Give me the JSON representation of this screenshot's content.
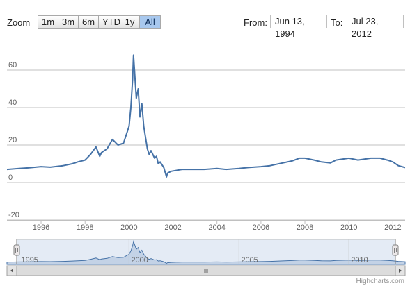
{
  "toolbar": {
    "zoom_label": "Zoom",
    "buttons": [
      "1m",
      "3m",
      "6m",
      "YTD",
      "1y",
      "All"
    ],
    "active": "All",
    "from_label": "From:",
    "from_value": "Jun 13, 1994",
    "to_label": "To:",
    "to_value": "Jul 23, 2012"
  },
  "credits": "Highcharts.com",
  "colors": {
    "series": "#4572a7",
    "navigator_fill": "#c3d2e6",
    "navigator_mask": "#e4ebf5",
    "grid": "#c0c0c0",
    "active_button": "#a8c8ee"
  },
  "chart_data": {
    "type": "line",
    "ylim": [
      -20,
      70
    ],
    "yticks": [
      -20,
      0,
      20,
      40,
      60
    ],
    "xticks": [
      1996,
      1998,
      2000,
      2002,
      2004,
      2006,
      2008,
      2010,
      2012
    ],
    "navigator_ticks": [
      1995,
      2000,
      2005,
      2010
    ],
    "xlim": [
      "1994-06-13",
      "2012-07-23"
    ],
    "grid": true,
    "legend": "none",
    "series": [
      {
        "x": [
          "1994-06-13",
          "1995-01-01",
          "1995-06-01",
          "1996-01-01",
          "1996-06-01",
          "1997-01-01",
          "1997-06-01",
          "1997-09-01",
          "1998-01-01",
          "1998-04-01",
          "1998-07-01",
          "1998-09-01",
          "1998-10-01",
          "1999-01-01",
          "1999-04-01",
          "1999-07-01",
          "1999-10-01",
          "2000-01-01",
          "2000-02-01",
          "2000-03-01",
          "2000-03-15",
          "2000-04-01",
          "2000-05-01",
          "2000-06-01",
          "2000-07-01",
          "2000-08-01",
          "2000-09-01",
          "2000-10-01",
          "2000-11-01",
          "2000-12-01",
          "2001-01-01",
          "2001-03-01",
          "2001-04-01",
          "2001-05-01",
          "2001-06-01",
          "2001-08-01",
          "2001-09-15",
          "2001-10-01",
          "2001-12-01",
          "2002-06-01",
          "2003-01-01",
          "2003-06-01",
          "2004-01-01",
          "2004-06-01",
          "2005-01-01",
          "2005-06-01",
          "2006-01-01",
          "2006-06-01",
          "2007-01-01",
          "2007-06-01",
          "2007-10-01",
          "2008-01-01",
          "2008-06-01",
          "2008-10-01",
          "2009-03-01",
          "2009-06-01",
          "2010-01-01",
          "2010-06-01",
          "2011-01-01",
          "2011-06-01",
          "2011-10-01",
          "2012-01-01",
          "2012-04-01",
          "2012-07-23"
        ],
        "y": [
          7,
          7.5,
          7.8,
          8.5,
          8.2,
          9,
          10,
          11,
          12,
          15,
          19,
          14,
          16,
          18,
          23,
          20,
          21,
          30,
          40,
          55,
          68,
          60,
          45,
          50,
          35,
          42,
          30,
          24,
          18,
          15,
          17,
          13,
          14,
          10,
          11,
          8,
          3,
          5,
          6,
          7,
          7,
          7,
          7.5,
          7,
          7.5,
          8,
          8.5,
          9,
          10.5,
          11.5,
          13,
          13,
          12,
          11,
          10.5,
          12,
          13,
          12,
          13,
          13,
          12,
          11,
          9,
          8
        ]
      }
    ]
  }
}
